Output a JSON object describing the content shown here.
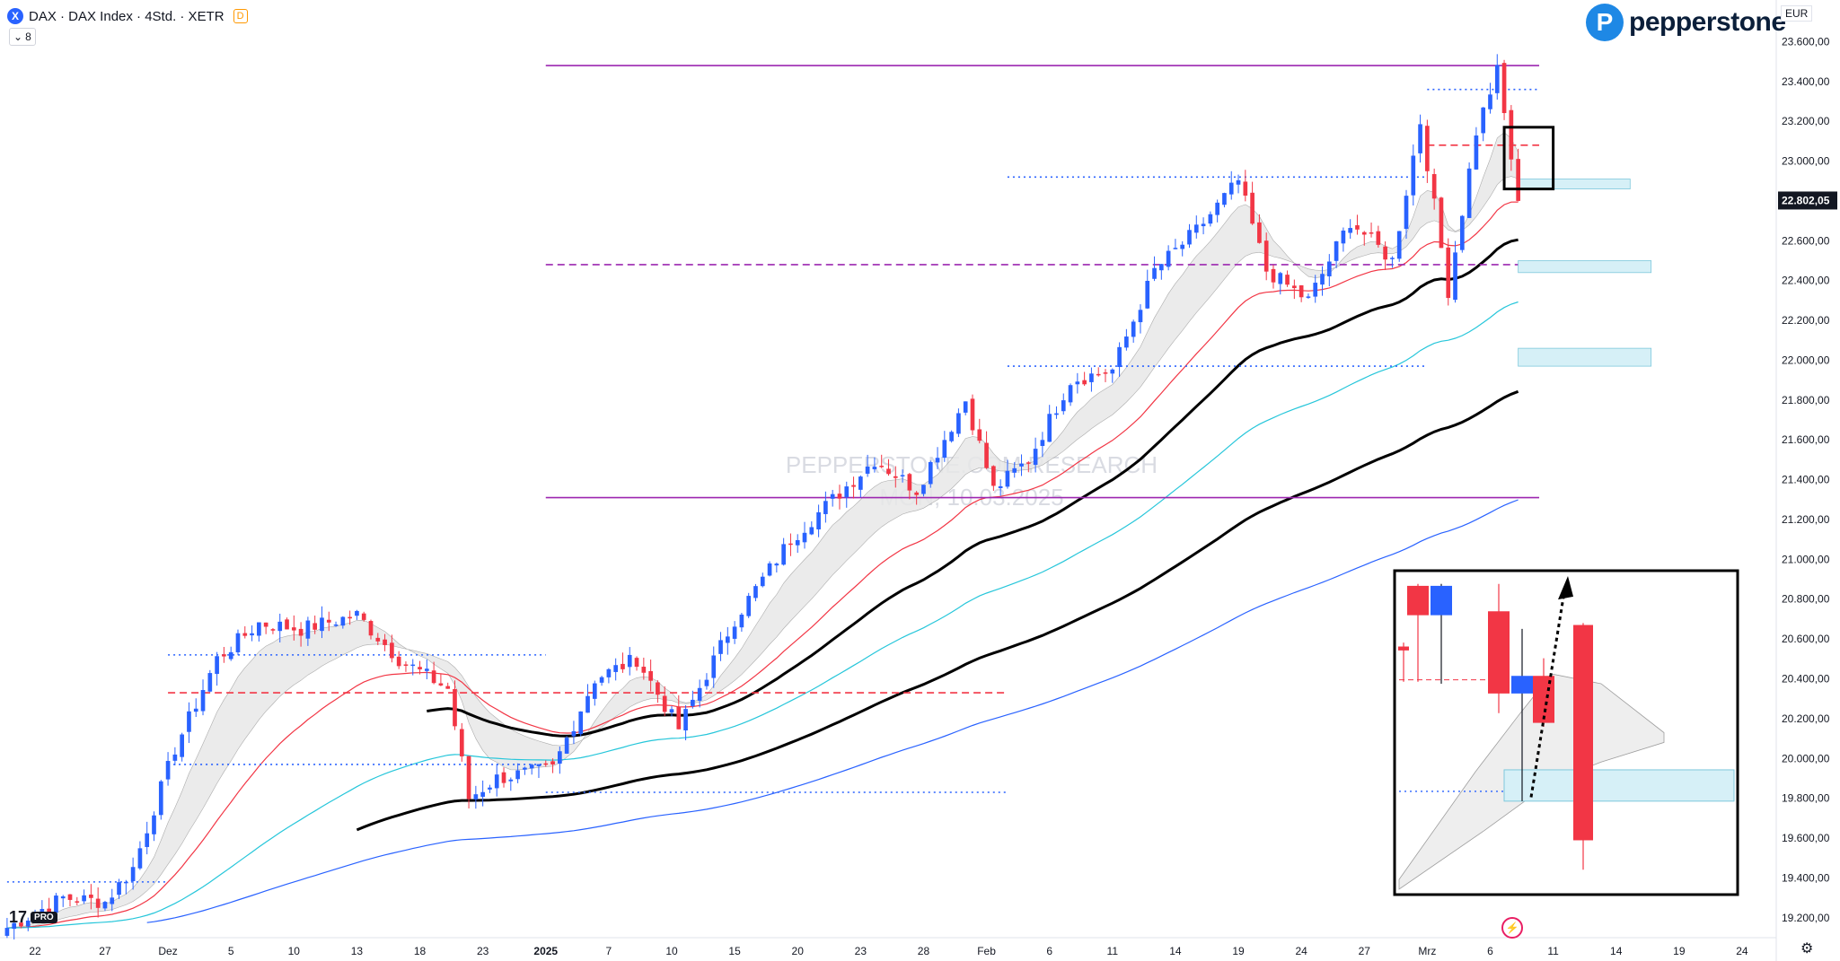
{
  "header": {
    "symbol_icon": "X",
    "title": "DAX · DAX Index · 4Std. · XETR",
    "data_flag": "D",
    "indicator_count": "8"
  },
  "brand": {
    "mark": "P",
    "name": "pepperstone"
  },
  "currency": "EUR",
  "watermark": {
    "line1": "PEPPERSTONE.COM RESEARCH",
    "line2": "MON, 10.03.2025"
  },
  "footer": {
    "tv_logo": "17",
    "tv_badge": "PRO",
    "settings_icon": "gear-icon",
    "flash_icon": "lightning-icon"
  },
  "colors": {
    "up": "#2962ff",
    "down": "#f23645",
    "ema_red": "#f23645",
    "ema_cyan": "#26c6da",
    "ema_blue": "#2962ff",
    "ema_black": "#000000",
    "magenta": "#9c27b0",
    "zone": "#d6f0f7",
    "cloud": "#e8e8e8"
  },
  "chart_data": {
    "type": "candlestick",
    "timeframe": "4H",
    "ylim": [
      19100,
      23800
    ],
    "y_ticks": [
      19200,
      19400,
      19600,
      19800,
      20000,
      20200,
      20400,
      20600,
      20800,
      21000,
      21200,
      21400,
      21600,
      21800,
      22000,
      22200,
      22400,
      22600,
      22800,
      23000,
      23200,
      23400,
      23600
    ],
    "y_tick_labels": [
      "19.200,00",
      "19.400,00",
      "19.600,00",
      "19.800,00",
      "20.000,00",
      "20.200,00",
      "20.400,00",
      "20.600,00",
      "20.800,00",
      "21.000,00",
      "21.200,00",
      "21.400,00",
      "21.600,00",
      "21.800,00",
      "22.000,00",
      "22.200,00",
      "22.400,00",
      "22.600,00",
      "22.800,00",
      "23.000,00",
      "23.200,00",
      "23.400,00",
      "23.600,00"
    ],
    "x_labels": [
      {
        "i": 4,
        "t": "22"
      },
      {
        "i": 14,
        "t": "27"
      },
      {
        "i": 23,
        "t": "Dez"
      },
      {
        "i": 32,
        "t": "5"
      },
      {
        "i": 41,
        "t": "10"
      },
      {
        "i": 50,
        "t": "13"
      },
      {
        "i": 59,
        "t": "18"
      },
      {
        "i": 68,
        "t": "23"
      },
      {
        "i": 77,
        "t": "2025"
      },
      {
        "i": 86,
        "t": "7"
      },
      {
        "i": 95,
        "t": "10"
      },
      {
        "i": 104,
        "t": "15"
      },
      {
        "i": 113,
        "t": "20"
      },
      {
        "i": 122,
        "t": "23"
      },
      {
        "i": 131,
        "t": "28"
      },
      {
        "i": 140,
        "t": "Feb"
      },
      {
        "i": 149,
        "t": "6"
      },
      {
        "i": 158,
        "t": "11"
      },
      {
        "i": 167,
        "t": "14"
      },
      {
        "i": 176,
        "t": "19"
      },
      {
        "i": 185,
        "t": "24"
      },
      {
        "i": 194,
        "t": "27"
      },
      {
        "i": 203,
        "t": "Mrz"
      },
      {
        "i": 212,
        "t": "6"
      },
      {
        "i": 221,
        "t": "11"
      },
      {
        "i": 230,
        "t": "14"
      },
      {
        "i": 239,
        "t": "19"
      },
      {
        "i": 248,
        "t": "24"
      }
    ],
    "last_price": 22802.05,
    "last_price_label": "22.802,05",
    "candles_anchor_closes": [
      [
        0,
        19150
      ],
      [
        8,
        19300
      ],
      [
        14,
        19280
      ],
      [
        18,
        19450
      ],
      [
        24,
        20050
      ],
      [
        30,
        20500
      ],
      [
        36,
        20680
      ],
      [
        42,
        20650
      ],
      [
        50,
        20720
      ],
      [
        56,
        20500
      ],
      [
        63,
        20350
      ],
      [
        66,
        19800
      ],
      [
        70,
        19900
      ],
      [
        78,
        19950
      ],
      [
        84,
        20400
      ],
      [
        90,
        20500
      ],
      [
        96,
        20150
      ],
      [
        104,
        20700
      ],
      [
        112,
        21100
      ],
      [
        118,
        21300
      ],
      [
        124,
        21500
      ],
      [
        130,
        21350
      ],
      [
        137,
        21800
      ],
      [
        141,
        21350
      ],
      [
        146,
        21500
      ],
      [
        152,
        21900
      ],
      [
        158,
        21950
      ],
      [
        164,
        22450
      ],
      [
        170,
        22650
      ],
      [
        176,
        22900
      ],
      [
        180,
        22450
      ],
      [
        186,
        22300
      ],
      [
        192,
        22700
      ],
      [
        198,
        22500
      ],
      [
        202,
        23200
      ],
      [
        206,
        22350
      ],
      [
        210,
        23150
      ],
      [
        213,
        23450
      ],
      [
        216,
        22800
      ]
    ],
    "horizontal_levels": [
      {
        "price": 23480,
        "from": 77,
        "to": 219,
        "style": "solid",
        "color": "#9c27b0"
      },
      {
        "price": 21310,
        "from": 77,
        "to": 219,
        "style": "solid",
        "color": "#9c27b0"
      },
      {
        "price": 22480,
        "from": 77,
        "to": 219,
        "style": "dashed",
        "color": "#9c27b0"
      },
      {
        "price": 23360,
        "from": 203,
        "to": 219,
        "style": "dotted",
        "color": "#2962ff"
      },
      {
        "price": 22920,
        "from": 143,
        "to": 203,
        "style": "dotted",
        "color": "#2962ff"
      },
      {
        "price": 21970,
        "from": 143,
        "to": 203,
        "style": "dotted",
        "color": "#2962ff"
      },
      {
        "price": 20520,
        "from": 23,
        "to": 77,
        "style": "dotted",
        "color": "#2962ff"
      },
      {
        "price": 20330,
        "from": 23,
        "to": 143,
        "style": "dashed",
        "color": "#f23645"
      },
      {
        "price": 19970,
        "from": 23,
        "to": 77,
        "style": "dotted",
        "color": "#2962ff"
      },
      {
        "price": 19830,
        "from": 77,
        "to": 143,
        "style": "dotted",
        "color": "#2962ff"
      },
      {
        "price": 19380,
        "from": 0,
        "to": 23,
        "style": "dotted",
        "color": "#2962ff"
      },
      {
        "price": 23080,
        "from": 203,
        "to": 219,
        "style": "dashed",
        "color": "#f23645"
      }
    ],
    "zones": [
      {
        "from": 216,
        "to": 232,
        "low": 22860,
        "high": 22910
      },
      {
        "from": 216,
        "to": 235,
        "low": 22440,
        "high": 22500
      },
      {
        "from": 216,
        "to": 235,
        "low": 21970,
        "high": 22060
      }
    ],
    "highlight_box": {
      "from": 214,
      "to": 221,
      "low": 22860,
      "high": 23170
    },
    "inset": {
      "candles": [
        {
          "o": 20640,
          "c": 20620,
          "h": 20660,
          "l": 20460
        },
        {
          "o": 20950,
          "c": 20800,
          "h": 20960,
          "l": 20460
        },
        {
          "o": 20800,
          "c": 20950,
          "h": 20960,
          "l": 20450
        },
        {
          "o": 20820,
          "c": 20400,
          "h": 20960,
          "l": 20300
        },
        {
          "o": 20400,
          "c": 20490,
          "h": 20730,
          "l": 19850
        },
        {
          "o": 20490,
          "c": 20250,
          "h": 20580,
          "l": 20230
        },
        {
          "o": 20750,
          "c": 19650,
          "h": 20760,
          "l": 19500
        }
      ],
      "ylim": [
        19400,
        21000
      ],
      "level_dashed": 20470,
      "level_dotted": 19900,
      "zone": {
        "low": 19850,
        "high": 20010
      }
    }
  }
}
